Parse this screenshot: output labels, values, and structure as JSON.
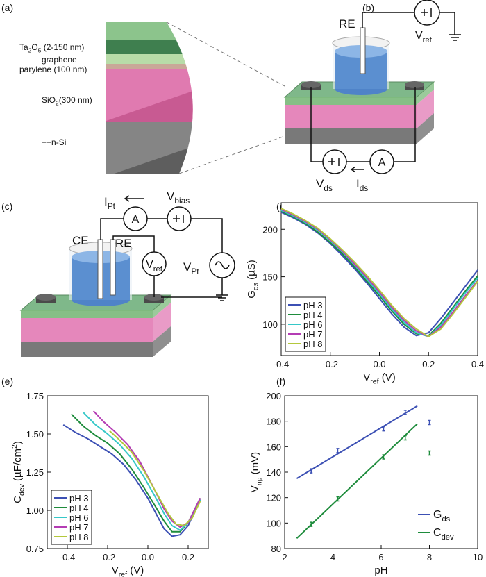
{
  "panel_labels": [
    "(a)",
    "(b)",
    "(c)",
    "(d)",
    "(e)",
    "(f)"
  ],
  "layers": [
    [
      "Ta",
      {
        "sub": "2"
      },
      "O",
      {
        "sub": "5"
      },
      " (2-150 nm)"
    ],
    "graphene",
    "parylene (100 nm)",
    [
      "SiO",
      {
        "sub": "2"
      },
      "(300 nm)"
    ],
    "++n-Si"
  ],
  "circuit_b": {
    "re": "RE",
    "v_ref": [
      "V",
      {
        "sub": "ref"
      }
    ],
    "ammeter": "A",
    "v_ds": [
      "V",
      {
        "sub": "ds"
      }
    ],
    "i_ds": [
      "I",
      {
        "sub": "ds"
      }
    ]
  },
  "circuit_c": {
    "i_pt": [
      "I",
      {
        "sub": "Pt"
      }
    ],
    "ammeter": "A",
    "v_bias": [
      "V",
      {
        "sub": "bias"
      }
    ],
    "ce": "CE",
    "re": "RE",
    "v_ref": [
      "V",
      {
        "sub": "ref"
      }
    ],
    "v_pt": [
      "V",
      {
        "sub": "Pt"
      }
    ]
  },
  "chart_data": [
    {
      "type": "line",
      "xlabel": [
        "V",
        {
          "sub": "ref"
        },
        " (V)"
      ],
      "ylabel": [
        "G",
        {
          "sub": "ds"
        },
        " (µS)"
      ],
      "x": [
        -0.4,
        -0.35,
        -0.3,
        -0.25,
        -0.2,
        -0.15,
        -0.1,
        -0.05,
        0,
        0.05,
        0.1,
        0.15,
        0.2,
        0.25,
        0.3,
        0.35,
        0.4
      ],
      "xlim": [
        -0.4,
        0.4
      ],
      "xticks": [
        -0.4,
        -0.2,
        {
          "value": 0,
          "label": "0.0"
        },
        0.2,
        0.4
      ],
      "ylim": [
        67,
        228
      ],
      "yticks": [
        100,
        150,
        200
      ],
      "legend": "lower left",
      "legend_frame": true,
      "series": [
        {
          "name": "pH 3",
          "color": "#3c50b4",
          "values": [
            218,
            212,
            205,
            196,
            185,
            172,
            158,
            143,
            127,
            111,
            97,
            88,
            91,
            106,
            123,
            140,
            157
          ]
        },
        {
          "name": "pH 4",
          "color": "#1e8c3c",
          "values": [
            219,
            213,
            206,
            197,
            186,
            174,
            160,
            145,
            130,
            114,
            100,
            90,
            88,
            101,
            118,
            135,
            151
          ]
        },
        {
          "name": "pH 6",
          "color": "#36c8c8",
          "values": [
            220,
            214,
            207,
            199,
            188,
            176,
            162,
            147,
            132,
            116,
            102,
            91,
            87,
            99,
            116,
            133,
            149
          ]
        },
        {
          "name": "pH 7",
          "color": "#b43cb4",
          "values": [
            221,
            215,
            208,
            200,
            189,
            177,
            163,
            149,
            134,
            118,
            104,
            93,
            87,
            97,
            113,
            130,
            146
          ]
        },
        {
          "name": "pH 8",
          "color": "#b4c83c",
          "values": [
            222,
            216,
            209,
            201,
            190,
            178,
            165,
            151,
            136,
            120,
            106,
            95,
            87,
            95,
            111,
            128,
            145
          ]
        }
      ]
    },
    {
      "type": "line",
      "xlabel": [
        "V",
        {
          "sub": "ref"
        },
        " (V)"
      ],
      "ylabel": [
        "C",
        {
          "sub": "dev"
        },
        " (µF/cm",
        {
          "sup": "2"
        },
        ")"
      ],
      "xlim": [
        -0.5,
        0.3
      ],
      "xticks": [
        -0.4,
        -0.2,
        {
          "value": 0,
          "label": "0.0"
        },
        0.2
      ],
      "ylim": [
        0.75,
        1.75
      ],
      "yticks": [
        0.75,
        {
          "value": 1,
          "label": "1.00"
        },
        1.25,
        {
          "value": 1.5,
          "label": "1.50"
        },
        1.75
      ],
      "legend": "lower left",
      "legend_frame": true,
      "series": [
        {
          "name": "pH 3",
          "color": "#3c50b4",
          "x": [
            -0.42,
            -0.36,
            -0.3,
            -0.24,
            -0.18,
            -0.12,
            -0.06,
            0,
            0.04,
            0.08,
            0.12,
            0.16,
            0.2,
            0.26
          ],
          "values": [
            1.56,
            1.51,
            1.47,
            1.42,
            1.37,
            1.3,
            1.2,
            1.08,
            0.98,
            0.88,
            0.83,
            0.84,
            0.9,
            1.07
          ]
        },
        {
          "name": "pH 4",
          "color": "#1e8c3c",
          "x": [
            -0.38,
            -0.32,
            -0.26,
            -0.2,
            -0.14,
            -0.08,
            -0.02,
            0.04,
            0.08,
            0.12,
            0.16,
            0.2,
            0.26
          ],
          "values": [
            1.63,
            1.55,
            1.49,
            1.44,
            1.37,
            1.27,
            1.15,
            1.02,
            0.93,
            0.86,
            0.86,
            0.92,
            1.08
          ]
        },
        {
          "name": "pH 6",
          "color": "#36c8c8",
          "x": [
            -0.32,
            -0.26,
            -0.2,
            -0.14,
            -0.08,
            -0.02,
            0.04,
            0.08,
            0.12,
            0.16,
            0.2,
            0.26
          ],
          "values": [
            1.64,
            1.56,
            1.5,
            1.43,
            1.34,
            1.22,
            1.08,
            0.98,
            0.9,
            0.87,
            0.92,
            1.07
          ]
        },
        {
          "name": "pH 7",
          "color": "#b43cb4",
          "x": [
            -0.27,
            -0.22,
            -0.16,
            -0.1,
            -0.04,
            0.02,
            0.08,
            0.12,
            0.16,
            0.2,
            0.26
          ],
          "values": [
            1.65,
            1.58,
            1.51,
            1.43,
            1.32,
            1.17,
            1.01,
            0.93,
            0.89,
            0.92,
            1.08
          ]
        },
        {
          "name": "pH 8",
          "color": "#b4c83c",
          "x": [
            -0.19,
            -0.14,
            -0.08,
            -0.02,
            0.04,
            0.1,
            0.14,
            0.18,
            0.22,
            0.26
          ],
          "values": [
            1.52,
            1.46,
            1.38,
            1.26,
            1.12,
            0.98,
            0.91,
            0.9,
            0.95,
            1.06
          ]
        }
      ]
    },
    {
      "type": "scatter",
      "xlabel": "pH",
      "ylabel": [
        "V",
        {
          "sub": "np"
        },
        " (mV)"
      ],
      "xlim": [
        2,
        10
      ],
      "xticks": [
        2,
        4,
        6,
        8,
        10
      ],
      "ylim": [
        80,
        200
      ],
      "yticks": [
        80,
        100,
        120,
        140,
        160,
        180,
        200
      ],
      "legend": "lower right",
      "legend_frame": false,
      "series": [
        {
          "name": [
            "G",
            {
              "sub": "ds"
            }
          ],
          "color": "#3c50b4",
          "x": [
            3.1,
            4.2,
            6.1,
            7,
            8
          ],
          "values": [
            141,
            157,
            174,
            187,
            179
          ],
          "fit_x": [
            2.5,
            7.5
          ],
          "fit_y": [
            135,
            192
          ]
        },
        {
          "name": [
            "C",
            {
              "sub": "dev"
            }
          ],
          "color": "#1e8c3c",
          "x": [
            3.1,
            4.2,
            6.1,
            7,
            8
          ],
          "values": [
            99,
            119,
            152,
            167,
            155
          ],
          "fit_x": [
            2.5,
            7.5
          ],
          "fit_y": [
            88,
            178
          ]
        }
      ]
    }
  ]
}
